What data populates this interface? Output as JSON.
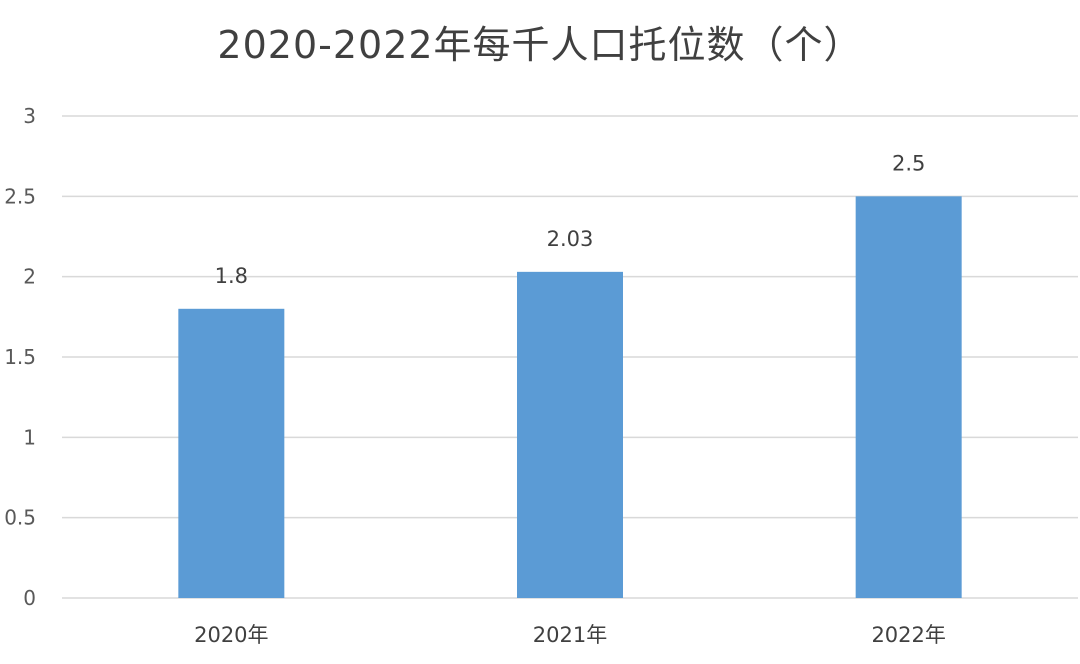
{
  "chart_data": {
    "type": "bar",
    "title": "2020-2022年每千人口托位数（个）",
    "categories": [
      "2020年",
      "2021年",
      "2022年"
    ],
    "values": [
      1.8,
      2.03,
      2.5
    ],
    "data_labels": [
      "1.8",
      "2.03",
      "2.5"
    ],
    "y_ticks": [
      "0",
      "0.5",
      "1",
      "1.5",
      "2",
      "2.5",
      "3"
    ],
    "ylim": [
      0,
      3
    ],
    "xlabel": "",
    "ylabel": "",
    "grid": true,
    "legend": "none",
    "bar_color": "#5b9bd5",
    "grid_color": "#d9d9d9"
  }
}
